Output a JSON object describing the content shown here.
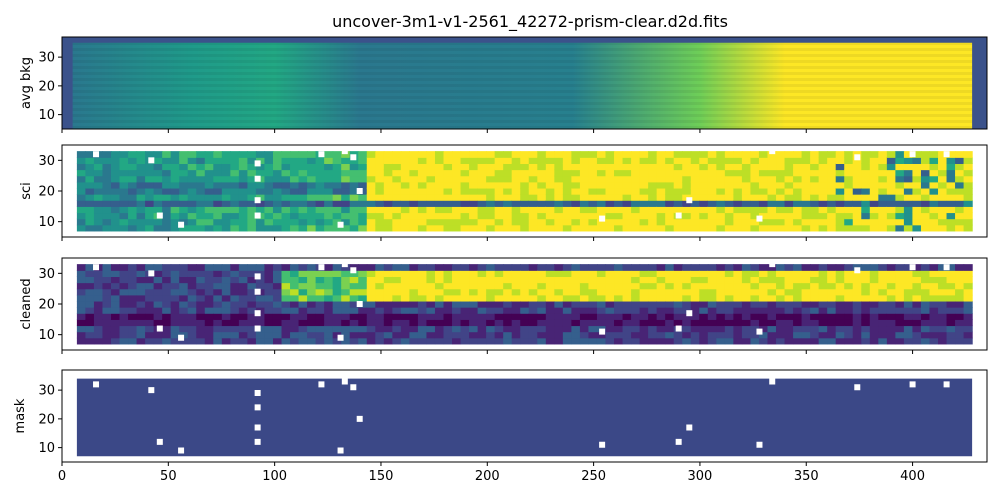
{
  "chart_data": {
    "type": "heatmap",
    "title": "uncover-3m1-v1-2561_42272-prism-clear.d2d.fits",
    "xlim": [
      0,
      435
    ],
    "x_ticks": [
      0,
      50,
      100,
      150,
      200,
      250,
      300,
      350,
      400
    ],
    "y_ticks": [
      10,
      20,
      30
    ],
    "colormap": "viridis",
    "panels": [
      {
        "ylabel": "avg bkg",
        "ylim": [
          5,
          37
        ],
        "image_x_range": [
          5,
          428
        ],
        "image_y_range": [
          5,
          35
        ],
        "description": "smooth background gradient: teal/blue on left, brightening to yellow beyond x~340",
        "color_stops": [
          [
            5,
            "#2a788e"
          ],
          [
            60,
            "#1f9a8a"
          ],
          [
            100,
            "#22a884"
          ],
          [
            140,
            "#2a788e"
          ],
          [
            240,
            "#27808e"
          ],
          [
            300,
            "#6ece58"
          ],
          [
            340,
            "#fde725"
          ],
          [
            428,
            "#fde725"
          ]
        ]
      },
      {
        "ylabel": "sci",
        "ylim": [
          5,
          35
        ],
        "image_x_range": [
          7,
          428
        ],
        "image_y_range": [
          7,
          33
        ],
        "description": "spectrum with bright continuum from x~140 onward, dark trace near y~15"
      },
      {
        "ylabel": "cleaned",
        "ylim": [
          5,
          35
        ],
        "image_x_range": [
          7,
          428
        ],
        "image_y_range": [
          7,
          33
        ],
        "description": "cleaned spectrum: dark purple background, bright yellow band y~20-30 from x~140"
      },
      {
        "ylabel": "mask",
        "ylim": [
          5,
          37
        ],
        "image_x_range": [
          7,
          428
        ],
        "image_y_range": [
          7,
          34
        ],
        "description": "uniform mask with masked (white) pixels",
        "masked_pixels": [
          [
            16,
            32
          ],
          [
            42,
            30
          ],
          [
            46,
            12
          ],
          [
            56,
            9
          ],
          [
            92,
            29
          ],
          [
            92,
            24
          ],
          [
            92,
            17
          ],
          [
            92,
            12
          ],
          [
            122,
            32
          ],
          [
            131,
            9
          ],
          [
            133,
            33
          ],
          [
            137,
            31
          ],
          [
            140,
            20
          ],
          [
            254,
            11
          ],
          [
            290,
            12
          ],
          [
            295,
            17
          ],
          [
            328,
            11
          ],
          [
            334,
            33
          ],
          [
            374,
            31
          ],
          [
            400,
            32
          ],
          [
            416,
            32
          ]
        ]
      }
    ]
  }
}
